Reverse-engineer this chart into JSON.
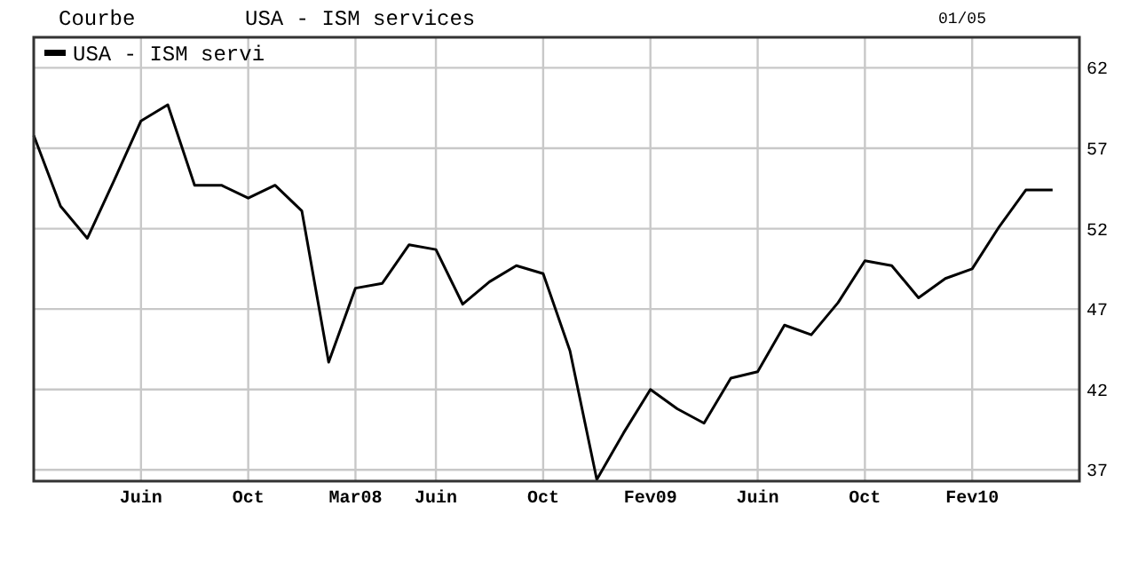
{
  "chart_data": {
    "type": "line",
    "title": "USA - ISM services",
    "annotations": [
      "Courbe",
      "01/05"
    ],
    "categories": [
      null,
      null,
      null,
      null,
      "Juin",
      null,
      null,
      null,
      "Oct",
      null,
      null,
      null,
      "Mar08",
      null,
      null,
      "Juin",
      null,
      null,
      null,
      "Oct",
      null,
      null,
      null,
      "Fev09",
      null,
      null,
      null,
      "Juin",
      null,
      null,
      null,
      "Oct",
      null,
      null,
      null,
      "Fev10",
      null,
      null,
      null
    ],
    "series": [
      {
        "name": "USA - ISM servi",
        "color": "#000000",
        "values": [
          57.8,
          53.4,
          51.4,
          55.0,
          58.7,
          59.7,
          54.7,
          54.7,
          53.9,
          54.7,
          53.1,
          43.7,
          48.3,
          48.6,
          51.0,
          50.7,
          47.3,
          48.7,
          49.7,
          49.2,
          44.4,
          36.4,
          39.3,
          42.0,
          40.8,
          39.9,
          42.7,
          43.1,
          46.0,
          45.4,
          47.4,
          50.0,
          49.7,
          47.7,
          48.9,
          49.5,
          52.1,
          54.4,
          54.4
        ]
      }
    ],
    "ylim": [
      36.3,
      63.9
    ],
    "yticks": [
      37,
      42,
      47,
      52,
      57,
      62
    ],
    "grid": true,
    "legend": "top left",
    "marker": "none",
    "line_style": "solid"
  }
}
